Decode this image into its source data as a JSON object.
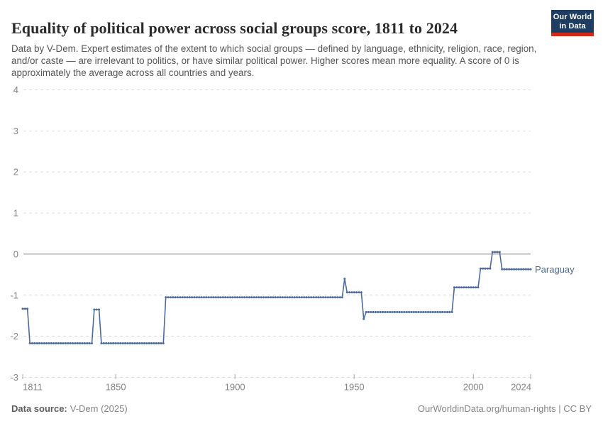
{
  "header": {
    "title": "Equality of political power across social groups score, 1811 to 2024",
    "subtitle": "Data by V-Dem. Expert estimates of the extent to which social groups — defined by language, ethnicity, religion, race, region, and/or caste — are irrelevant to politics, or have similar political power. Higher scores mean more equality. A score of 0 is approximately the average across all countries and years.",
    "logo": {
      "line1": "Our World",
      "line2": "in Data"
    }
  },
  "chart_data": {
    "type": "line",
    "title": "Equality of political power across social groups score, 1811 to 2024",
    "entity": "Paraguay",
    "xlabel": "",
    "ylabel": "",
    "xlim": [
      1811,
      2024
    ],
    "ylim": [
      -3,
      4
    ],
    "yticks": [
      4,
      3,
      2,
      1,
      0,
      -1,
      -2,
      -3
    ],
    "xticks": [
      1811,
      1850,
      1900,
      1950,
      2000,
      2024
    ],
    "grid": "horizontal-dashed",
    "zero_line": true,
    "legend_position": "end-of-line-label",
    "line_color": "#4c6a9c",
    "marker": "dot-per-year",
    "segments_note": "step series: [startYear, endYear, value]",
    "segments": [
      [
        1811,
        1813,
        -1.33
      ],
      [
        1814,
        1840,
        -2.17
      ],
      [
        1841,
        1843,
        -1.35
      ],
      [
        1844,
        1870,
        -2.17
      ],
      [
        1871,
        1945,
        -1.05
      ],
      [
        1946,
        1946,
        -0.6
      ],
      [
        1947,
        1953,
        -0.93
      ],
      [
        1954,
        1954,
        -1.58
      ],
      [
        1955,
        1991,
        -1.41
      ],
      [
        1992,
        2002,
        -0.81
      ],
      [
        2003,
        2007,
        -0.35
      ],
      [
        2008,
        2011,
        0.05
      ],
      [
        2012,
        2024,
        -0.37
      ]
    ]
  },
  "footer": {
    "source_label": "Data source:",
    "source_value": "V-Dem (2025)",
    "credit": "OurWorldinData.org/human-rights | CC BY"
  }
}
